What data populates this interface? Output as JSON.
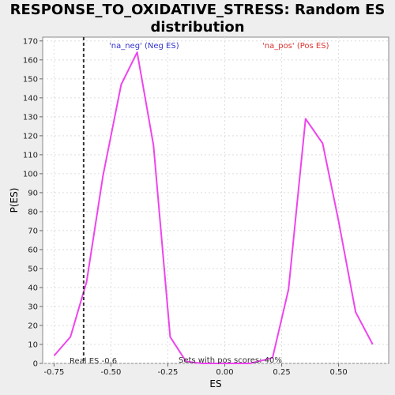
{
  "chart_data": {
    "type": "line",
    "title_line1": "RESPONSE_TO_OXIDATIVE_STRESS: Random ES",
    "title_line2": "distribution",
    "xlabel": "ES",
    "ylabel": "P(ES)",
    "xlim": [
      -0.8,
      0.72
    ],
    "ylim": [
      0,
      172
    ],
    "xticks": [
      -0.75,
      -0.5,
      -0.25,
      0.0,
      0.25,
      0.5
    ],
    "xtick_labels": [
      "-0.75",
      "-0.50",
      "-0.25",
      "0.00",
      "0.25",
      "0.50"
    ],
    "yticks": [
      0,
      10,
      20,
      30,
      40,
      50,
      60,
      70,
      80,
      90,
      100,
      110,
      120,
      130,
      140,
      150,
      160,
      170
    ],
    "grid": true,
    "series": [
      {
        "color": "#ee44ee",
        "x": [
          -0.75,
          -0.678,
          -0.607,
          -0.535,
          -0.455,
          -0.385,
          -0.313,
          -0.24,
          -0.17,
          -0.1,
          -0.03,
          0.04,
          0.11,
          0.18,
          0.21,
          0.28,
          0.355,
          0.43,
          0.5,
          0.575,
          0.65
        ],
        "y": [
          4,
          14,
          43,
          99,
          147,
          164,
          115,
          14,
          1,
          0,
          0,
          0,
          0,
          2,
          3,
          39,
          129,
          116,
          75,
          27,
          10
        ]
      }
    ],
    "real_es": -0.62,
    "annotations": {
      "neg": "'na_neg' (Neg ES)",
      "pos": "'na_pos' (Pos ES)",
      "real_es_label": "Real ES -0.6",
      "pos_scores": "Sets with pos scores: 40%"
    },
    "colors": {
      "neg": "#3333cc",
      "pos": "#dd3333",
      "line": "#ee44ee"
    }
  }
}
